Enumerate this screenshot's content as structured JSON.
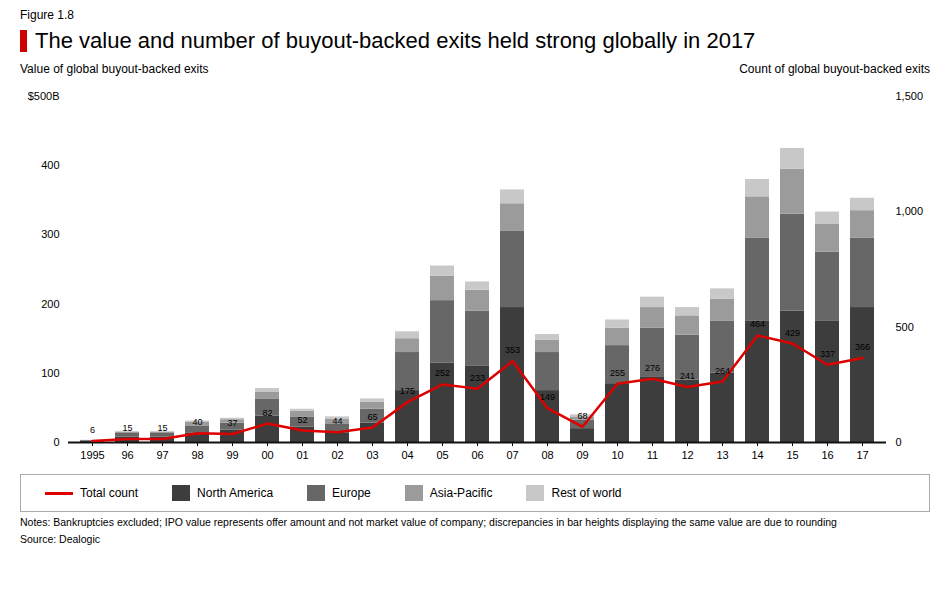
{
  "chart_data": {
    "type": "bar",
    "title": "The value and number of buyout-backed exits held strong globally in 2017",
    "annotations": [
      "Figure 1.8",
      "Notes: Bankruptcies excluded; IPO value represents offer amount and not market value of company; discrepancies in bar heights displaying the same value are due to rounding",
      "Source: Dealogic"
    ],
    "ylabel": "Value of global buyout-backed exits",
    "y2label": "Count of global buyout-backed exits",
    "categories": [
      "1995",
      "96",
      "97",
      "98",
      "99",
      "00",
      "01",
      "02",
      "03",
      "04",
      "05",
      "06",
      "07",
      "08",
      "09",
      "10",
      "11",
      "12",
      "13",
      "14",
      "15",
      "16",
      "17"
    ],
    "series": [
      {
        "name": "Total count",
        "type": "line",
        "axis": "y2",
        "color": "#dd0000",
        "data_labels": true,
        "values": [
          6,
          15,
          15,
          40,
          37,
          82,
          52,
          44,
          65,
          175,
          252,
          233,
          353,
          149,
          68,
          255,
          276,
          241,
          264,
          464,
          429,
          337,
          366
        ]
      },
      {
        "name": "North America",
        "type": "bar",
        "color": "#3d3d3d",
        "values": [
          2,
          8,
          8,
          14,
          18,
          38,
          22,
          14,
          28,
          75,
          115,
          110,
          195,
          75,
          20,
          85,
          95,
          90,
          100,
          175,
          190,
          175,
          195
        ]
      },
      {
        "name": "Europe",
        "type": "bar",
        "color": "#676767",
        "values": [
          1,
          5,
          5,
          10,
          10,
          25,
          15,
          12,
          20,
          55,
          90,
          80,
          110,
          55,
          12,
          55,
          70,
          65,
          75,
          120,
          140,
          100,
          100
        ]
      },
      {
        "name": "Asia-Pacific",
        "type": "bar",
        "color": "#9b9b9b",
        "values": [
          0,
          2,
          2,
          5,
          5,
          10,
          8,
          8,
          10,
          20,
          35,
          30,
          40,
          18,
          5,
          25,
          30,
          28,
          32,
          60,
          65,
          40,
          40
        ]
      },
      {
        "name": "Rest of world",
        "type": "bar",
        "color": "#c8c8c8",
        "values": [
          0,
          1,
          1,
          2,
          2,
          5,
          3,
          3,
          5,
          10,
          15,
          12,
          20,
          8,
          3,
          12,
          15,
          12,
          15,
          25,
          30,
          18,
          18
        ]
      }
    ],
    "stacked": true,
    "ylim": [
      0,
      500
    ],
    "yticks": [
      0,
      100,
      200,
      300,
      400,
      {
        "value": 500,
        "label": "$500B"
      }
    ],
    "y2lim": [
      0,
      1500
    ],
    "y2ticks": [
      0,
      500,
      {
        "value": 1000,
        "label": "1,000"
      },
      {
        "value": 1500,
        "label": "1,500"
      }
    ],
    "grid": false,
    "legend": "bottom"
  }
}
